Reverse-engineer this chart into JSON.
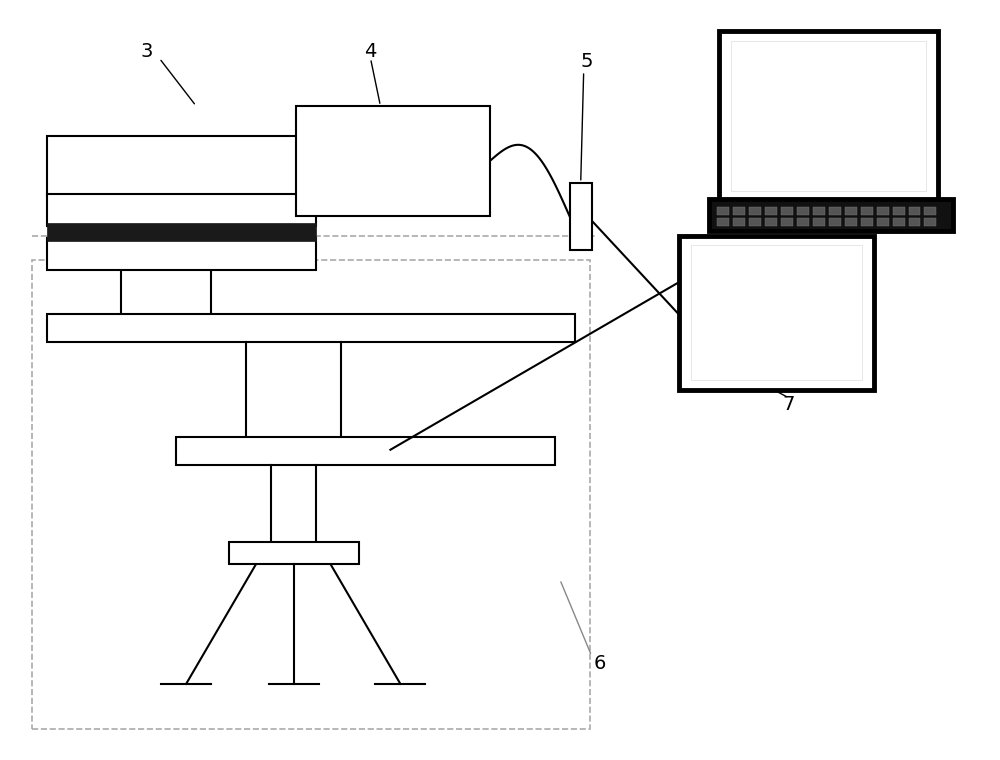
{
  "bg_color": "#ffffff",
  "line_color": "#000000",
  "dash_color": "#aaaaaa",
  "lw_main": 1.5,
  "lw_thick": 3.5,
  "figsize": [
    10.0,
    7.6
  ],
  "label_fs": 14
}
